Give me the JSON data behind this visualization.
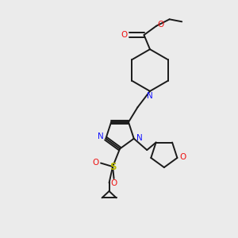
{
  "bg_color": "#ebebeb",
  "bond_color": "#1a1a1a",
  "N_color": "#1414ff",
  "O_color": "#ee1111",
  "S_color": "#bbbb00",
  "figsize": [
    3.0,
    3.0
  ],
  "dpi": 100,
  "lw": 1.4,
  "fs": 7.5,
  "xlim": [
    0,
    10
  ],
  "ylim": [
    0,
    10
  ]
}
